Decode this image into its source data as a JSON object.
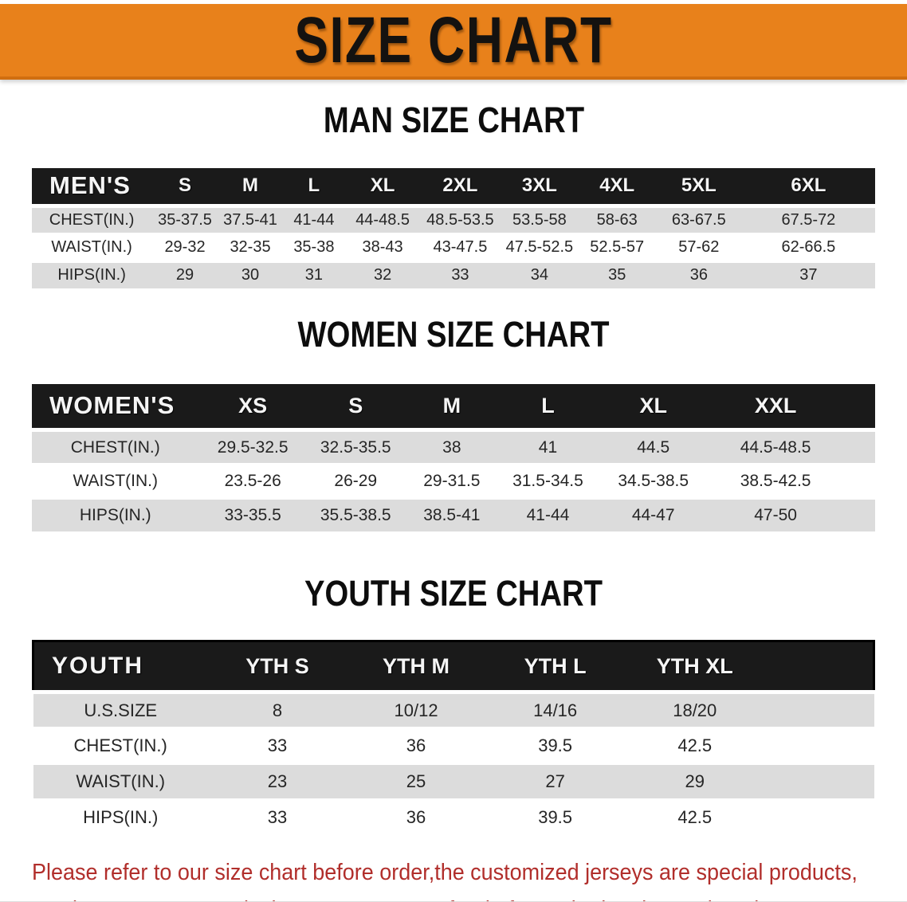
{
  "banner": {
    "title": "SIZE CHART",
    "bg_color": "#E8811B",
    "text_color": "#141210"
  },
  "sections": [
    {
      "heading": "MAN SIZE CHART",
      "table": {
        "header": [
          "MEN'S",
          "S",
          "M",
          "L",
          "XL",
          "2XL",
          "3XL",
          "4XL",
          "5XL",
          "6XL"
        ],
        "rows": [
          [
            "CHEST(IN.)",
            "35-37.5",
            "37.5-41",
            "41-44",
            "44-48.5",
            "48.5-53.5",
            "53.5-58",
            "58-63",
            "63-67.5",
            "67.5-72"
          ],
          [
            "WAIST(IN.)",
            "29-32",
            "32-35",
            "35-38",
            "38-43",
            "43-47.5",
            "47.5-52.5",
            "52.5-57",
            "57-62",
            "62-66.5"
          ],
          [
            "HIPS(IN.)",
            "29",
            "30",
            "31",
            "32",
            "33",
            "34",
            "35",
            "36",
            "37"
          ]
        ]
      }
    },
    {
      "heading": "WOMEN SIZE CHART",
      "table": {
        "header": [
          "WOMEN'S",
          "XS",
          "S",
          "M",
          "L",
          "XL",
          "XXL"
        ],
        "rows": [
          [
            "CHEST(IN.)",
            "29.5-32.5",
            "32.5-35.5",
            "38",
            "41",
            "44.5",
            "44.5-48.5"
          ],
          [
            "WAIST(IN.)",
            "23.5-26",
            "26-29",
            "29-31.5",
            "31.5-34.5",
            "34.5-38.5",
            "38.5-42.5"
          ],
          [
            "HIPS(IN.)",
            "33-35.5",
            "35.5-38.5",
            "38.5-41",
            "41-44",
            "44-47",
            "47-50"
          ]
        ]
      }
    },
    {
      "heading": "YOUTH SIZE CHART",
      "table": {
        "header": [
          "YOUTH",
          "YTH S",
          "YTH M",
          "YTH L",
          "YTH XL"
        ],
        "rows": [
          [
            "U.S.SIZE",
            "8",
            "10/12",
            "14/16",
            "18/20"
          ],
          [
            "CHEST(IN.)",
            "33",
            "36",
            "39.5",
            "42.5"
          ],
          [
            "WAIST(IN.)",
            "23",
            "25",
            "27",
            "29"
          ],
          [
            "HIPS(IN.)",
            "33",
            "36",
            "39.5",
            "42.5"
          ]
        ]
      }
    }
  ],
  "footer_note": {
    "lines": [
      "Please refer to our size chart before order,the customized jerseys are special products,",
      "we don't accept cancel, change, teturn or refund after order has been placed!"
    ],
    "text_color": "#B12E2B"
  }
}
